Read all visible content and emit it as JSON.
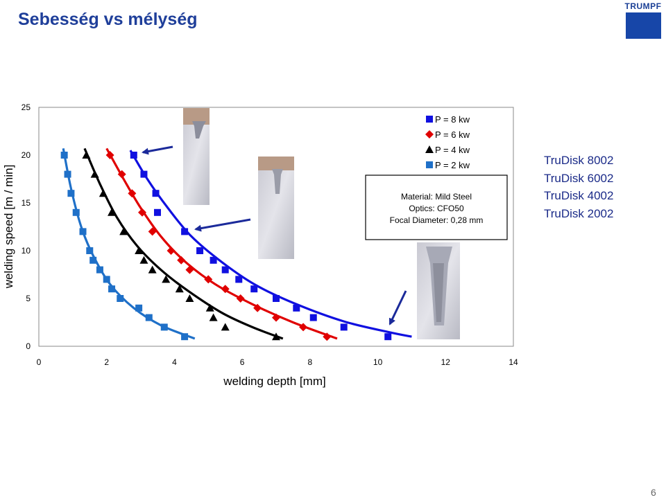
{
  "slide": {
    "title": "Sebesség vs mélység",
    "logo_text": "TRUMPF",
    "page_number": "6",
    "lasers": [
      "TruDisk 8002",
      "TruDisk 6002",
      "TruDisk 4002",
      "TruDisk 2002"
    ]
  },
  "chart_data": {
    "type": "scatter",
    "xlabel": "welding depth [mm]",
    "ylabel": "welding speed [m / min]",
    "xlim": [
      0,
      14
    ],
    "ylim": [
      0,
      25
    ],
    "x_ticks": [
      "0",
      "2",
      "4",
      "6",
      "8",
      "10",
      "12",
      "14"
    ],
    "y_ticks": [
      "0",
      "5",
      "10",
      "15",
      "20",
      "25"
    ],
    "grid": false,
    "legend": {
      "placement": "top-right",
      "entries": [
        "P = 8 kw",
        "P = 6 kw",
        "P = 4 kw",
        "P = 2 kw"
      ]
    },
    "info_box": [
      "Material: Mild Steel",
      "Optics: CFO50",
      "Focal Diameter: 0,28 mm"
    ],
    "series": [
      {
        "name": "P = 8 kw",
        "color": "#1010e0",
        "marker": "square",
        "points": [
          [
            2.8,
            20
          ],
          [
            3.1,
            18
          ],
          [
            3.45,
            16
          ],
          [
            3.5,
            14
          ],
          [
            4.3,
            12
          ],
          [
            4.75,
            10
          ],
          [
            5.15,
            9
          ],
          [
            5.5,
            8
          ],
          [
            5.9,
            7
          ],
          [
            6.35,
            6
          ],
          [
            7.0,
            5
          ],
          [
            7.6,
            4
          ],
          [
            8.1,
            3
          ],
          [
            9.0,
            2
          ],
          [
            10.3,
            1
          ]
        ],
        "fit": [
          [
            2.7,
            20.5
          ],
          [
            3.2,
            17.5
          ],
          [
            3.8,
            14.5
          ],
          [
            4.5,
            11.5
          ],
          [
            5.4,
            8.8
          ],
          [
            6.4,
            6.4
          ],
          [
            7.6,
            4.4
          ],
          [
            9.0,
            2.6
          ],
          [
            10.3,
            1.5
          ],
          [
            11.0,
            1.0
          ]
        ]
      },
      {
        "name": "P = 6 kw",
        "color": "#e00000",
        "marker": "diamond",
        "points": [
          [
            2.1,
            20
          ],
          [
            2.45,
            18
          ],
          [
            2.75,
            16
          ],
          [
            3.05,
            14
          ],
          [
            3.35,
            12
          ],
          [
            3.9,
            10
          ],
          [
            4.2,
            9
          ],
          [
            4.45,
            8
          ],
          [
            5.0,
            7
          ],
          [
            5.5,
            6
          ],
          [
            5.95,
            5
          ],
          [
            6.45,
            4
          ],
          [
            7.0,
            3
          ],
          [
            7.8,
            2
          ],
          [
            8.5,
            1
          ]
        ],
        "fit": [
          [
            2.0,
            20.7
          ],
          [
            2.5,
            17.5
          ],
          [
            3.0,
            14.5
          ],
          [
            3.6,
            11.5
          ],
          [
            4.3,
            8.9
          ],
          [
            5.2,
            6.5
          ],
          [
            6.3,
            4.4
          ],
          [
            7.5,
            2.5
          ],
          [
            8.8,
            0.8
          ]
        ]
      },
      {
        "name": "P = 4 kw",
        "color": "#000000",
        "marker": "triangle",
        "points": [
          [
            1.4,
            20
          ],
          [
            1.65,
            18
          ],
          [
            1.9,
            16
          ],
          [
            2.15,
            14
          ],
          [
            2.5,
            12
          ],
          [
            2.95,
            10
          ],
          [
            3.1,
            9
          ],
          [
            3.35,
            8
          ],
          [
            3.75,
            7
          ],
          [
            4.15,
            6
          ],
          [
            4.45,
            5
          ],
          [
            5.05,
            4
          ],
          [
            5.15,
            3
          ],
          [
            5.5,
            2
          ],
          [
            7.0,
            1
          ]
        ],
        "fit": [
          [
            1.35,
            20.7
          ],
          [
            1.8,
            17.0
          ],
          [
            2.3,
            13.5
          ],
          [
            2.9,
            10.5
          ],
          [
            3.6,
            8.0
          ],
          [
            4.4,
            5.8
          ],
          [
            5.4,
            3.5
          ],
          [
            6.3,
            2.0
          ],
          [
            7.2,
            0.8
          ]
        ]
      },
      {
        "name": "P = 2 kw",
        "color": "#1f70c8",
        "marker": "square",
        "points": [
          [
            0.75,
            20
          ],
          [
            0.85,
            18
          ],
          [
            0.95,
            16
          ],
          [
            1.1,
            14
          ],
          [
            1.3,
            12
          ],
          [
            1.5,
            10
          ],
          [
            1.6,
            9
          ],
          [
            1.8,
            8
          ],
          [
            2.0,
            7
          ],
          [
            2.15,
            6
          ],
          [
            2.4,
            5
          ],
          [
            2.95,
            4
          ],
          [
            3.25,
            3
          ],
          [
            3.7,
            2
          ],
          [
            4.3,
            1
          ]
        ],
        "fit": [
          [
            0.72,
            20.7
          ],
          [
            0.95,
            16.5
          ],
          [
            1.25,
            12.5
          ],
          [
            1.6,
            9.5
          ],
          [
            2.1,
            6.5
          ],
          [
            2.8,
            4.0
          ],
          [
            3.6,
            2.2
          ],
          [
            4.6,
            0.8
          ]
        ]
      }
    ]
  }
}
